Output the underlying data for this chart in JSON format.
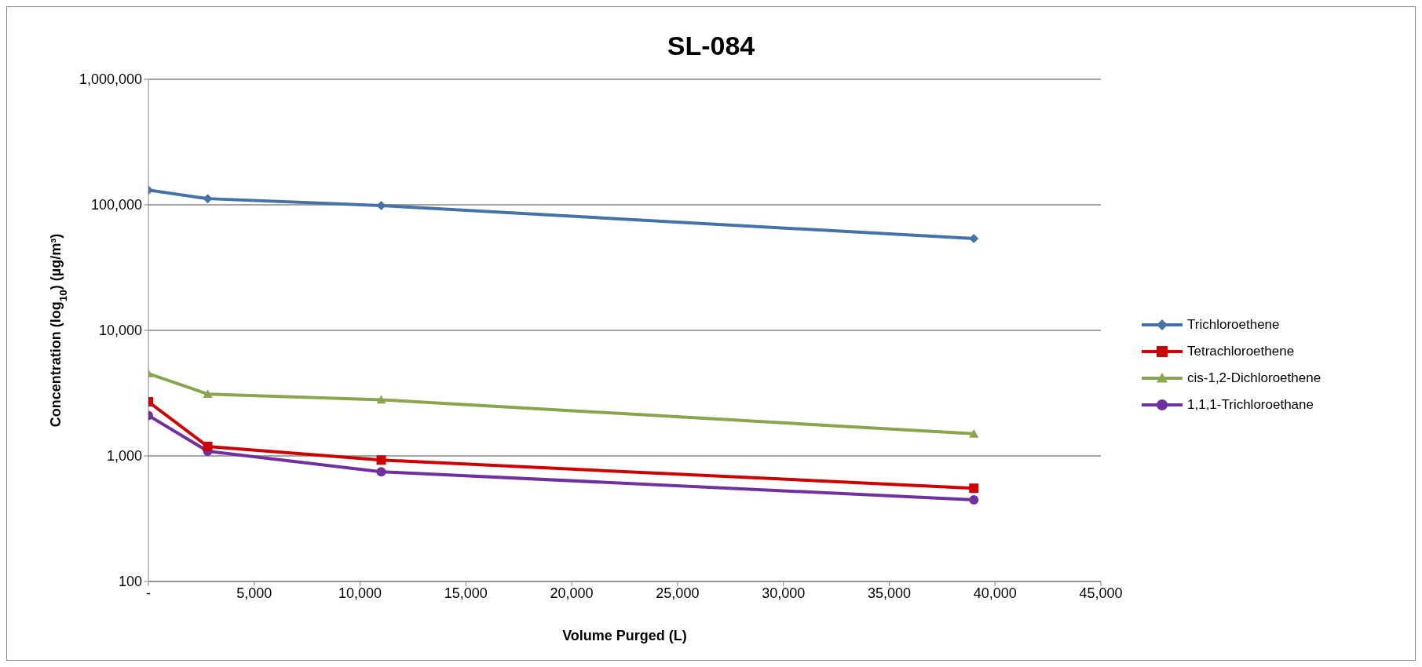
{
  "chart_data": {
    "type": "line",
    "title": "SL-084",
    "xlabel": "Volume Purged (L)",
    "ylabel": "Concentration (log$_{10}$) (µg/m³)",
    "x": [
      0,
      2800,
      11000,
      39000
    ],
    "series": [
      {
        "name": "Trichloroethene",
        "color": "#4572a7",
        "marker": "diamond",
        "values": [
          131000,
          112000,
          98600,
          53800
        ]
      },
      {
        "name": "Tetrachloroethene",
        "color": "#cc0000",
        "marker": "square",
        "values": [
          2700,
          1190,
          927,
          553
        ]
      },
      {
        "name": "cis-1,2-Dichloroethene",
        "color": "#89a54e",
        "marker": "triangle",
        "values": [
          4530,
          3110,
          2800,
          1500
        ]
      },
      {
        "name": "1,1,1-Trichloroethane",
        "color": "#7030a0",
        "marker": "circle",
        "values": [
          2100,
          1090,
          748,
          447
        ]
      }
    ],
    "xlim": [
      0,
      45000
    ],
    "xticks": [
      {
        "value": 0,
        "label": "-"
      },
      {
        "value": 5000,
        "label": "5,000"
      },
      {
        "value": 10000,
        "label": "10,000"
      },
      {
        "value": 15000,
        "label": "15,000"
      },
      {
        "value": 20000,
        "label": "20,000"
      },
      {
        "value": 25000,
        "label": "25,000"
      },
      {
        "value": 30000,
        "label": "30,000"
      },
      {
        "value": 35000,
        "label": "35,000"
      },
      {
        "value": 40000,
        "label": "40,000"
      },
      {
        "value": 45000,
        "label": "45,000"
      }
    ],
    "ylim": [
      100,
      1000000
    ],
    "yticks": [
      {
        "value": 100,
        "label": "100"
      },
      {
        "value": 1000,
        "label": "1,000"
      },
      {
        "value": 10000,
        "label": "10,000"
      },
      {
        "value": 100000,
        "label": "100,000"
      },
      {
        "value": 1000000,
        "label": "1,000,000"
      }
    ],
    "log": "y",
    "grid": "y",
    "legend": "right",
    "line_style": "solid"
  }
}
